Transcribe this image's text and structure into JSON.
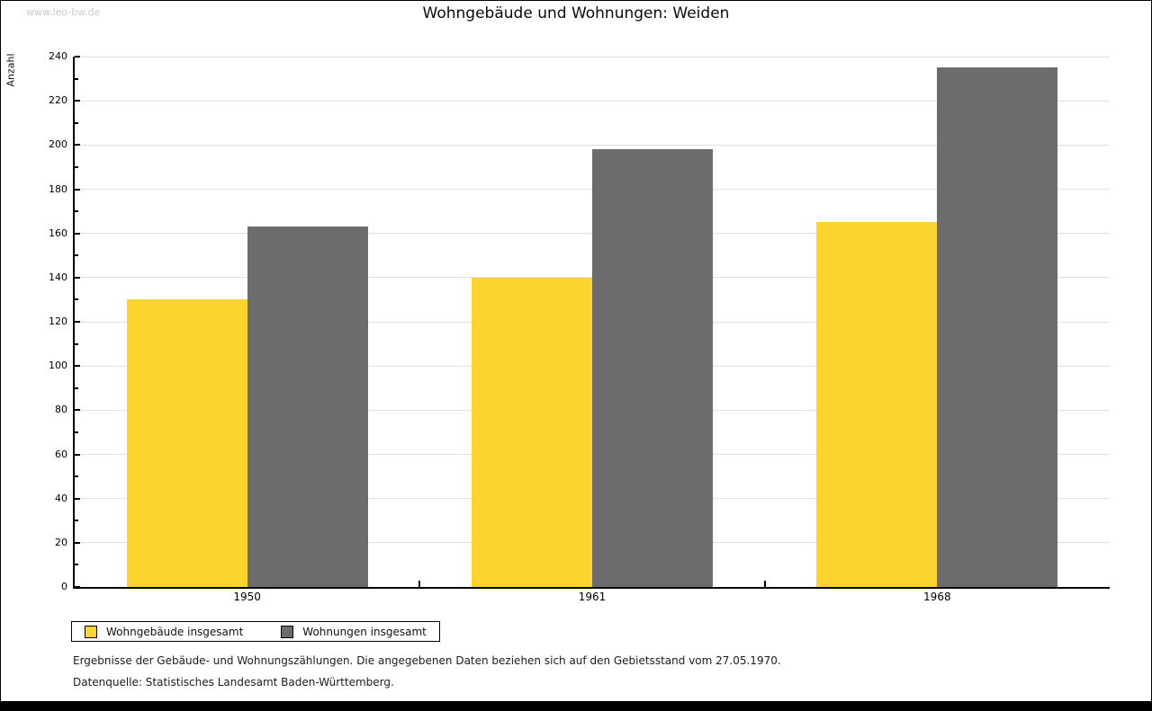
{
  "watermark": "www.leo-bw.de",
  "chart_data": {
    "type": "bar",
    "title": "Wohngebäude und Wohnungen: Weiden",
    "ylabel": "Anzahl",
    "xlabel": "",
    "categories": [
      "1950",
      "1961",
      "1968"
    ],
    "series": [
      {
        "name": "Wohngebäude insgesamt",
        "color": "#FCD32F",
        "values": [
          130,
          140,
          165
        ]
      },
      {
        "name": "Wohnungen insgesamt",
        "color": "#6C6C6C",
        "values": [
          163,
          198,
          235
        ]
      }
    ],
    "ylim": [
      0,
      240
    ],
    "y_tick_step": 20,
    "y_minor_tick_step": 10,
    "grid": "horizontal",
    "gridline_color": "#e0e0e0",
    "legend_position": "bottom-left"
  },
  "footer": {
    "note": "Ergebnisse der Gebäude- und Wohnungszählungen. Die angegebenen Daten beziehen sich auf den Gebietsstand vom 27.05.1970.",
    "source": "Datenquelle: Statistisches Landesamt Baden-Württemberg."
  }
}
